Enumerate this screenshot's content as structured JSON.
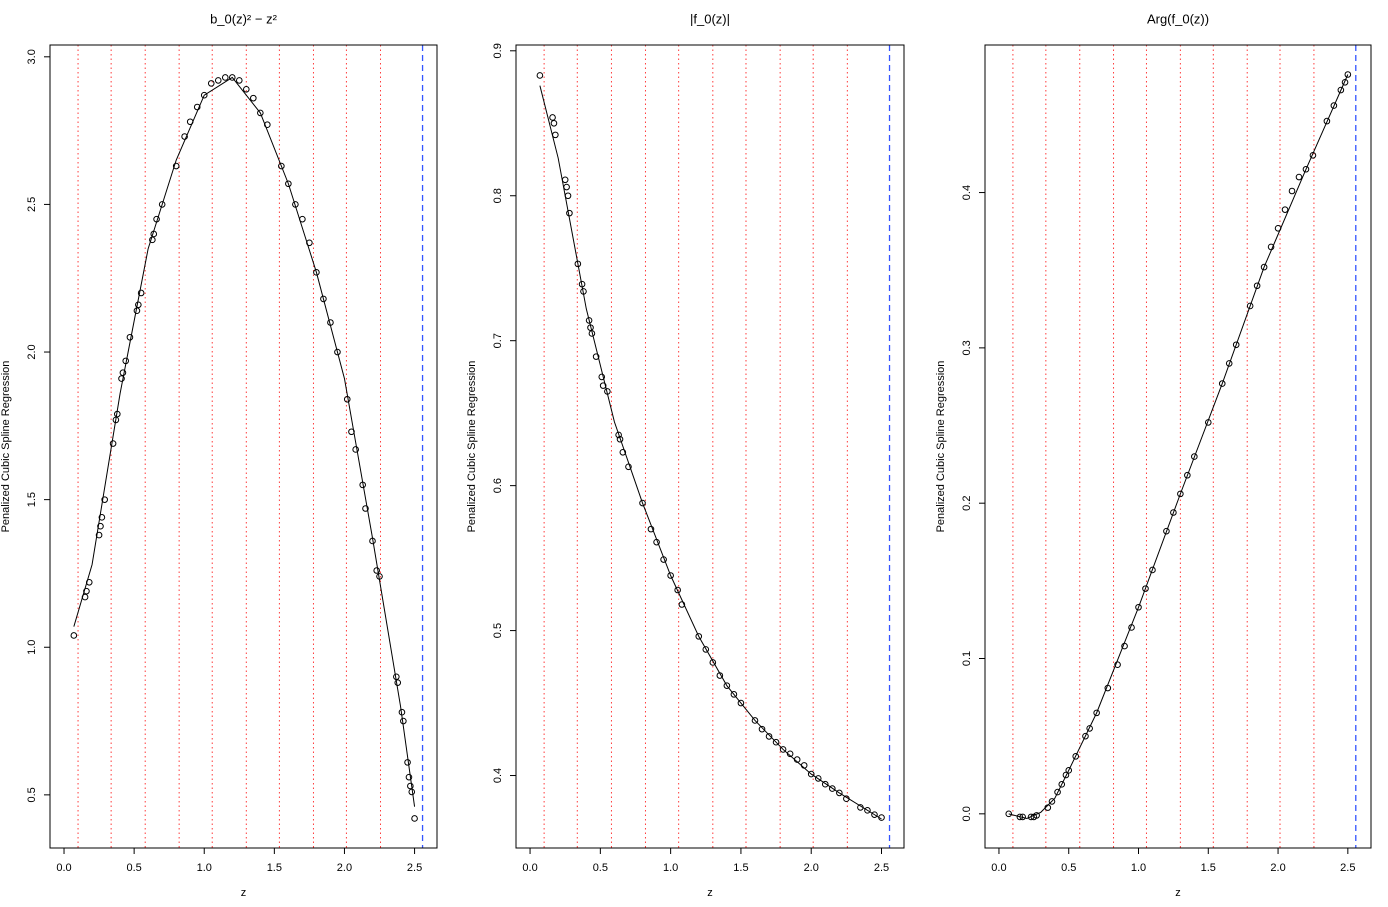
{
  "chart_data": [
    {
      "type": "scatter",
      "title": "b_0(z)² − z²",
      "xlabel": "z",
      "ylabel": "Penalized Cubic Spline Regression",
      "x": [
        0.07,
        0.15,
        0.16,
        0.18,
        0.25,
        0.26,
        0.27,
        0.29,
        0.35,
        0.37,
        0.38,
        0.41,
        0.42,
        0.44,
        0.47,
        0.52,
        0.53,
        0.55,
        0.63,
        0.64,
        0.66,
        0.7,
        0.8,
        0.86,
        0.9,
        0.95,
        1.0,
        1.05,
        1.1,
        1.15,
        1.2,
        1.25,
        1.3,
        1.35,
        1.4,
        1.45,
        1.55,
        1.6,
        1.65,
        1.7,
        1.75,
        1.8,
        1.85,
        1.9,
        1.95,
        2.02,
        2.05,
        2.08,
        2.13,
        2.15,
        2.2,
        2.23,
        2.25,
        2.37,
        2.38,
        2.41,
        2.42,
        2.45,
        2.46,
        2.47,
        2.48,
        2.5
      ],
      "y": [
        1.04,
        1.17,
        1.19,
        1.22,
        1.38,
        1.41,
        1.44,
        1.5,
        1.69,
        1.77,
        1.79,
        1.91,
        1.93,
        1.97,
        2.05,
        2.14,
        2.16,
        2.2,
        2.38,
        2.4,
        2.45,
        2.5,
        2.63,
        2.73,
        2.78,
        2.83,
        2.87,
        2.91,
        2.92,
        2.93,
        2.93,
        2.92,
        2.89,
        2.86,
        2.81,
        2.77,
        2.63,
        2.57,
        2.5,
        2.45,
        2.37,
        2.27,
        2.18,
        2.1,
        2.0,
        1.84,
        1.73,
        1.67,
        1.55,
        1.47,
        1.36,
        1.26,
        1.24,
        0.9,
        0.88,
        0.78,
        0.75,
        0.61,
        0.56,
        0.53,
        0.51,
        0.42
      ],
      "fit_x": [
        0.07,
        0.2,
        0.4,
        0.6,
        0.8,
        1.0,
        1.2,
        1.4,
        1.6,
        1.8,
        2.0,
        2.2,
        2.4,
        2.5
      ],
      "fit_y": [
        1.07,
        1.28,
        1.86,
        2.35,
        2.65,
        2.87,
        2.93,
        2.81,
        2.57,
        2.27,
        1.91,
        1.37,
        0.8,
        0.46
      ],
      "knots": [
        0.1,
        0.336,
        0.579,
        0.821,
        1.057,
        1.3,
        1.536,
        1.779,
        2.014,
        2.257
      ],
      "knot_color": "#ff3b3b",
      "vline": 2.557,
      "vline_color": "#3355ff",
      "point_color": "#000000",
      "fit_color": "#000000",
      "xlim": [
        -0.1,
        2.66
      ],
      "ylim": [
        0.32,
        3.04
      ],
      "xticks": [
        {
          "value": 0,
          "label": "0.0"
        },
        0.5,
        {
          "value": 1,
          "label": "1.0"
        },
        1.5,
        {
          "value": 2,
          "label": "2.0"
        },
        2.5
      ],
      "yticks": [
        0.5,
        {
          "value": 1,
          "label": "1.0"
        },
        1.5,
        {
          "value": 2,
          "label": "2.0"
        },
        2.5,
        {
          "value": 3,
          "label": "3.0"
        }
      ]
    },
    {
      "type": "scatter",
      "title": "|f_0(z)|",
      "xlabel": "z",
      "ylabel": "Penalized Cubic Spline Regression",
      "x": [
        0.07,
        0.16,
        0.17,
        0.18,
        0.25,
        0.26,
        0.27,
        0.28,
        0.34,
        0.37,
        0.38,
        0.42,
        0.43,
        0.44,
        0.47,
        0.51,
        0.52,
        0.55,
        0.63,
        0.64,
        0.66,
        0.7,
        0.8,
        0.86,
        0.9,
        0.95,
        1.0,
        1.05,
        1.08,
        1.2,
        1.25,
        1.3,
        1.35,
        1.4,
        1.45,
        1.5,
        1.6,
        1.65,
        1.7,
        1.75,
        1.8,
        1.85,
        1.9,
        1.95,
        2.0,
        2.05,
        2.1,
        2.15,
        2.2,
        2.25,
        2.35,
        2.4,
        2.45,
        2.5
      ],
      "y": [
        0.883,
        0.854,
        0.85,
        0.842,
        0.811,
        0.806,
        0.8,
        0.788,
        0.753,
        0.739,
        0.734,
        0.714,
        0.709,
        0.705,
        0.689,
        0.675,
        0.669,
        0.665,
        0.635,
        0.632,
        0.623,
        0.613,
        0.588,
        0.57,
        0.561,
        0.549,
        0.538,
        0.528,
        0.518,
        0.496,
        0.487,
        0.478,
        0.469,
        0.462,
        0.456,
        0.45,
        0.438,
        0.432,
        0.427,
        0.423,
        0.418,
        0.415,
        0.411,
        0.407,
        0.401,
        0.398,
        0.394,
        0.391,
        0.388,
        0.384,
        0.378,
        0.376,
        0.373,
        0.371
      ],
      "fit_x": [
        0.07,
        0.2,
        0.4,
        0.6,
        0.8,
        1.0,
        1.2,
        1.4,
        1.6,
        1.8,
        2.0,
        2.2,
        2.5
      ],
      "fit_y": [
        0.876,
        0.826,
        0.722,
        0.644,
        0.588,
        0.538,
        0.496,
        0.462,
        0.438,
        0.418,
        0.401,
        0.388,
        0.37
      ],
      "knots": [
        0.1,
        0.336,
        0.579,
        0.821,
        1.057,
        1.3,
        1.536,
        1.779,
        2.014,
        2.257
      ],
      "knot_color": "#ff3b3b",
      "vline": 2.557,
      "vline_color": "#3355ff",
      "point_color": "#000000",
      "fit_color": "#000000",
      "xlim": [
        -0.1,
        2.66
      ],
      "ylim": [
        0.35,
        0.904
      ],
      "xticks": [
        {
          "value": 0,
          "label": "0.0"
        },
        0.5,
        {
          "value": 1,
          "label": "1.0"
        },
        1.5,
        {
          "value": 2,
          "label": "2.0"
        },
        2.5
      ],
      "yticks": [
        0.4,
        0.5,
        0.6,
        0.7,
        0.8,
        0.9
      ]
    },
    {
      "type": "scatter",
      "title": "Arg(f_0(z))",
      "xlabel": "z",
      "ylabel": "Penalized Cubic Spline Regression",
      "x": [
        0.07,
        0.15,
        0.17,
        0.23,
        0.25,
        0.27,
        0.35,
        0.38,
        0.42,
        0.45,
        0.48,
        0.5,
        0.55,
        0.62,
        0.65,
        0.7,
        0.78,
        0.85,
        0.9,
        0.95,
        1.0,
        1.05,
        1.1,
        1.2,
        1.25,
        1.3,
        1.35,
        1.4,
        1.5,
        1.6,
        1.65,
        1.7,
        1.8,
        1.85,
        1.9,
        1.95,
        2.0,
        2.05,
        2.1,
        2.15,
        2.2,
        2.25,
        2.35,
        2.4,
        2.45,
        2.48,
        2.5
      ],
      "y": [
        0.0,
        -0.002,
        -0.002,
        -0.002,
        -0.002,
        -0.001,
        0.004,
        0.008,
        0.014,
        0.019,
        0.025,
        0.028,
        0.037,
        0.05,
        0.055,
        0.065,
        0.081,
        0.096,
        0.108,
        0.12,
        0.133,
        0.145,
        0.157,
        0.182,
        0.194,
        0.206,
        0.218,
        0.23,
        0.252,
        0.277,
        0.29,
        0.302,
        0.327,
        0.34,
        0.352,
        0.365,
        0.377,
        0.389,
        0.401,
        0.41,
        0.415,
        0.424,
        0.446,
        0.456,
        0.466,
        0.471,
        0.476
      ],
      "fit_x": [
        0.07,
        0.2,
        0.3,
        0.4,
        0.5,
        0.7,
        1.0,
        1.3,
        1.6,
        1.9,
        2.2,
        2.5
      ],
      "fit_y": [
        0.0,
        -0.003,
        0.001,
        0.01,
        0.028,
        0.065,
        0.133,
        0.206,
        0.277,
        0.352,
        0.415,
        0.476
      ],
      "knots": [
        0.1,
        0.336,
        0.579,
        0.821,
        1.057,
        1.3,
        1.536,
        1.779,
        2.014,
        2.257
      ],
      "knot_color": "#ff3b3b",
      "vline": 2.557,
      "vline_color": "#3355ff",
      "point_color": "#000000",
      "fit_color": "#000000",
      "xlim": [
        -0.1,
        2.666
      ],
      "ylim": [
        -0.022,
        0.495
      ],
      "xticks": [
        {
          "value": 0,
          "label": "0.0"
        },
        0.5,
        {
          "value": 1,
          "label": "1.0"
        },
        1.5,
        {
          "value": 2,
          "label": "2.0"
        },
        2.5
      ],
      "yticks": [
        {
          "value": 0,
          "label": "0.0"
        },
        0.1,
        0.2,
        0.3,
        0.4
      ]
    }
  ]
}
